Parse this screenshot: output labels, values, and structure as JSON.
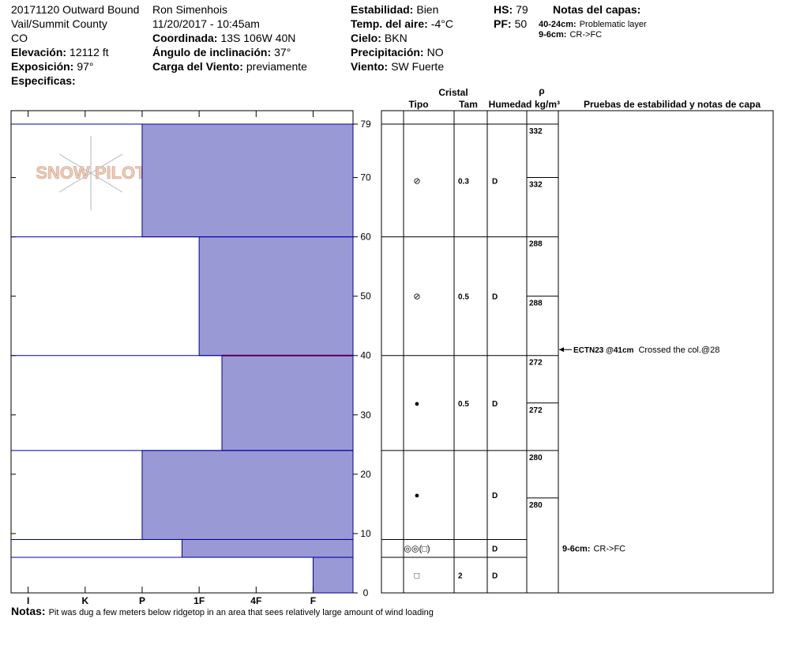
{
  "header": {
    "columns": [
      [
        {
          "value": "20171120 Outward Bound"
        },
        {
          "value": "Vail/Summit County"
        },
        {
          "value": "CO"
        },
        {
          "label": "Elevación:",
          "value": "12112 ft"
        },
        {
          "label": "Exposición:",
          "value": "97°"
        },
        {
          "label": "Especificas:"
        }
      ],
      [
        {
          "value": "Ron Simenhois"
        },
        {
          "value": "11/20/2017 - 10:45am"
        },
        {
          "label": "Coordinada:",
          "value": "13S 106W 40N"
        },
        {
          "label": "Ángulo de inclinación:",
          "value": "37°"
        },
        {
          "label": "Carga del Viento:",
          "value": "previamente"
        }
      ],
      [
        {
          "label": "Estabilidad:",
          "value": "Bien"
        },
        {
          "label": "Temp. del aire:",
          "value": "-4°C"
        },
        {
          "label": "Cielo:",
          "value": "BKN"
        },
        {
          "label": "Precipitación:",
          "value": "NO"
        },
        {
          "label": "Viento:",
          "value": "SW Fuerte"
        }
      ],
      [
        {
          "label": "HS:",
          "value": 79
        },
        {
          "label": "PF:",
          "value": 50
        }
      ]
    ],
    "layer_notes_title": "Notas del capas:",
    "layer_notes": [
      {
        "label": "40-24cm:",
        "value": "Problematic layer"
      },
      {
        "label": "9-6cm:",
        "value": "CR->FC"
      }
    ]
  },
  "logo": "SNOW PILOT",
  "table_headers": {
    "cristal": "Cristal",
    "tipo": "Tipo",
    "tam": "Tam",
    "humedad": "Humedad",
    "rho": "ρ",
    "density_unit": "kg/m³",
    "tests": "Pruebas de estabilidad y notas de capa"
  },
  "chart_data": {
    "type": "snow-profile",
    "color": "#9999d6",
    "ylim": [
      0,
      79
    ],
    "yticks": [
      0,
      10,
      20,
      30,
      40,
      50,
      60,
      70,
      79
    ],
    "xlim": [
      6.3,
      0.3
    ],
    "xticks": [
      {
        "value": 6,
        "label": "I"
      },
      {
        "value": 5,
        "label": "K"
      },
      {
        "value": 4,
        "label": "P"
      },
      {
        "value": 3,
        "label": "1F"
      },
      {
        "value": 2,
        "label": "4F"
      },
      {
        "value": 1,
        "label": "F"
      }
    ],
    "layers": [
      {
        "top": 79,
        "bottom": 60,
        "hardness": 4,
        "grain": "⊘",
        "size": "0.3",
        "moisture": "D"
      },
      {
        "top": 60,
        "bottom": 40,
        "hardness": 3,
        "grain": "⊘",
        "size": "0.5",
        "moisture": "D"
      },
      {
        "top": 40,
        "bottom": 24,
        "hardness": 2.6,
        "grain": "●",
        "size": "0.5",
        "moisture": "D"
      },
      {
        "top": 24,
        "bottom": 9,
        "hardness": 4,
        "grain": "●",
        "moisture": "D"
      },
      {
        "top": 9,
        "bottom": 6,
        "hardness": 3.3,
        "grain": "◎◎(□)",
        "moisture": "D"
      },
      {
        "top": 6,
        "bottom": 0,
        "hardness": 1,
        "grain": "□",
        "size": "2",
        "moisture": "D"
      }
    ],
    "density": [
      {
        "top": 79,
        "value": 332
      },
      {
        "top": 70,
        "value": 332
      },
      {
        "top": 60,
        "value": 288
      },
      {
        "top": 50,
        "value": 288
      },
      {
        "top": 40,
        "value": 272
      },
      {
        "top": 32,
        "value": 272
      },
      {
        "top": 24,
        "value": 280
      },
      {
        "top": 16,
        "value": 280
      }
    ],
    "tests": [
      {
        "depth": 41,
        "test": "ECTN23 @41cm",
        "comment": "Crossed the col.@28"
      }
    ]
  },
  "notes": {
    "label": "Notas:",
    "value": "Pit was dug a few meters below ridgetop in an area that sees relatively large amount of wind loading"
  }
}
